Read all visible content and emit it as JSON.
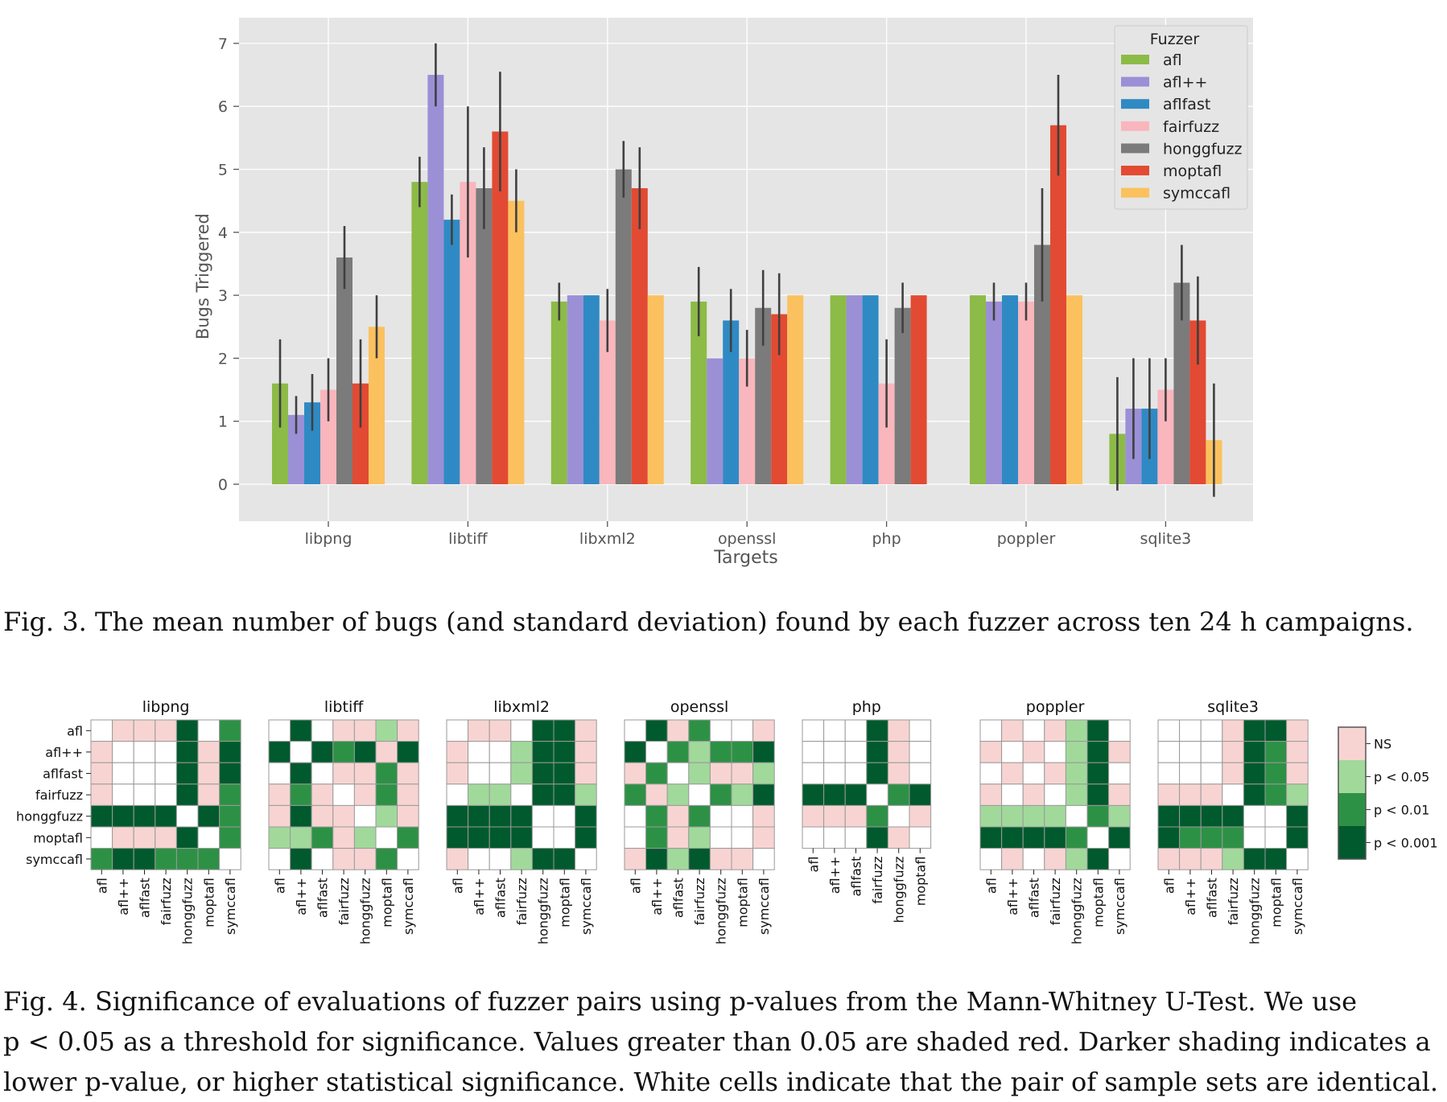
{
  "chart_data": [
    {
      "type": "bar",
      "xlabel": "Targets",
      "ylabel": "Bugs Triggered",
      "ylim": [
        -0.6,
        7.4
      ],
      "yticks": [
        0,
        1,
        2,
        3,
        4,
        5,
        6,
        7
      ],
      "grid": true,
      "legend_title": "Fuzzer",
      "legend_position": "top-right",
      "categories": [
        "libpng",
        "libtiff",
        "libxml2",
        "openssl",
        "php",
        "poppler",
        "sqlite3"
      ],
      "series": [
        {
          "name": "afl",
          "color": "#8cbb47",
          "values": [
            1.6,
            4.8,
            2.9,
            2.9,
            3.0,
            3.0,
            0.8
          ],
          "errors": [
            0.7,
            0.4,
            0.3,
            0.55,
            0.0,
            0.0,
            0.9
          ]
        },
        {
          "name": "afl++",
          "color": "#9b8fd6",
          "values": [
            1.1,
            6.5,
            3.0,
            2.0,
            3.0,
            2.9,
            1.2
          ],
          "errors": [
            0.3,
            0.5,
            0.0,
            0.0,
            0.0,
            0.3,
            0.8
          ]
        },
        {
          "name": "aflfast",
          "color": "#2f8ac4",
          "values": [
            1.3,
            4.2,
            3.0,
            2.6,
            3.0,
            3.0,
            1.2
          ],
          "errors": [
            0.45,
            0.4,
            0.0,
            0.5,
            0.0,
            0.0,
            0.8
          ]
        },
        {
          "name": "fairfuzz",
          "color": "#f9b6bc",
          "values": [
            1.5,
            4.8,
            2.6,
            2.0,
            1.6,
            2.9,
            1.5
          ],
          "errors": [
            0.5,
            1.2,
            0.5,
            0.45,
            0.7,
            0.3,
            0.5
          ]
        },
        {
          "name": "honggfuzz",
          "color": "#7b7b7b",
          "values": [
            3.6,
            4.7,
            5.0,
            2.8,
            2.8,
            3.8,
            3.2
          ],
          "errors": [
            0.5,
            0.65,
            0.45,
            0.6,
            0.4,
            0.9,
            0.6
          ]
        },
        {
          "name": "moptafl",
          "color": "#e24a33",
          "values": [
            1.6,
            5.6,
            4.7,
            2.7,
            3.0,
            5.7,
            2.6
          ],
          "errors": [
            0.7,
            0.95,
            0.65,
            0.65,
            0.0,
            0.8,
            0.7
          ]
        },
        {
          "name": "symccafl",
          "color": "#fbc15e",
          "values": [
            2.5,
            4.5,
            3.0,
            3.0,
            null,
            3.0,
            0.7
          ],
          "errors": [
            0.5,
            0.5,
            0.0,
            0.0,
            null,
            0.0,
            0.9
          ]
        }
      ]
    },
    {
      "type": "heatmap",
      "fuzzers": [
        "afl",
        "afl++",
        "aflfast",
        "fairfuzz",
        "honggfuzz",
        "moptafl",
        "symccafl"
      ],
      "legend": [
        {
          "code": 1,
          "label": "NS",
          "color": "#f7d4d2"
        },
        {
          "code": 2,
          "label": "p < 0.05",
          "color": "#a1d99b"
        },
        {
          "code": 3,
          "label": "p < 0.01",
          "color": "#2d9145"
        },
        {
          "code": 4,
          "label": "p < 0.001",
          "color": "#005a2d"
        }
      ],
      "code_0": "identical (white)",
      "panels": [
        {
          "title": "libpng",
          "fuzzers": [
            "afl",
            "afl++",
            "aflfast",
            "fairfuzz",
            "honggfuzz",
            "moptafl",
            "symccafl"
          ],
          "matrix": [
            [
              0,
              1,
              1,
              1,
              4,
              0,
              3
            ],
            [
              1,
              0,
              0,
              0,
              4,
              1,
              4
            ],
            [
              1,
              0,
              0,
              0,
              4,
              1,
              4
            ],
            [
              1,
              0,
              0,
              0,
              4,
              1,
              3
            ],
            [
              4,
              4,
              4,
              4,
              0,
              4,
              3
            ],
            [
              0,
              1,
              1,
              1,
              4,
              0,
              3
            ],
            [
              3,
              4,
              4,
              3,
              3,
              3,
              0
            ]
          ]
        },
        {
          "title": "libtiff",
          "fuzzers": [
            "afl",
            "afl++",
            "aflfast",
            "fairfuzz",
            "honggfuzz",
            "moptafl",
            "symccafl"
          ],
          "matrix": [
            [
              0,
              4,
              0,
              1,
              1,
              2,
              1
            ],
            [
              4,
              0,
              4,
              3,
              4,
              1,
              4
            ],
            [
              0,
              4,
              0,
              1,
              1,
              3,
              1
            ],
            [
              1,
              3,
              1,
              0,
              1,
              3,
              1
            ],
            [
              1,
              4,
              1,
              1,
              0,
              2,
              1
            ],
            [
              2,
              2,
              3,
              1,
              2,
              0,
              3
            ],
            [
              0,
              4,
              0,
              1,
              1,
              3,
              0
            ]
          ]
        },
        {
          "title": "libxml2",
          "fuzzers": [
            "afl",
            "afl++",
            "aflfast",
            "fairfuzz",
            "honggfuzz",
            "moptafl",
            "symccafl"
          ],
          "matrix": [
            [
              0,
              1,
              1,
              0,
              4,
              4,
              1
            ],
            [
              1,
              0,
              0,
              2,
              4,
              4,
              1
            ],
            [
              1,
              0,
              0,
              2,
              4,
              4,
              1
            ],
            [
              0,
              2,
              2,
              0,
              4,
              4,
              2
            ],
            [
              4,
              4,
              4,
              4,
              0,
              0,
              4
            ],
            [
              4,
              4,
              4,
              4,
              0,
              0,
              4
            ],
            [
              1,
              0,
              0,
              2,
              4,
              4,
              0
            ]
          ]
        },
        {
          "title": "openssl",
          "fuzzers": [
            "afl",
            "afl++",
            "aflfast",
            "fairfuzz",
            "honggfuzz",
            "moptafl",
            "symccafl"
          ],
          "matrix": [
            [
              0,
              4,
              1,
              3,
              0,
              0,
              1
            ],
            [
              4,
              0,
              3,
              2,
              3,
              3,
              4
            ],
            [
              1,
              3,
              0,
              2,
              1,
              1,
              2
            ],
            [
              3,
              1,
              2,
              0,
              3,
              2,
              4
            ],
            [
              0,
              3,
              1,
              3,
              0,
              0,
              1
            ],
            [
              0,
              3,
              1,
              2,
              0,
              0,
              1
            ],
            [
              1,
              4,
              2,
              4,
              1,
              1,
              0
            ]
          ]
        },
        {
          "title": "php",
          "fuzzers": [
            "afl",
            "afl++",
            "aflfast",
            "fairfuzz",
            "honggfuzz",
            "moptafl"
          ],
          "matrix": [
            [
              0,
              0,
              0,
              4,
              1,
              0
            ],
            [
              0,
              0,
              0,
              4,
              1,
              0
            ],
            [
              0,
              0,
              0,
              4,
              1,
              0
            ],
            [
              4,
              4,
              4,
              0,
              3,
              4
            ],
            [
              1,
              1,
              1,
              3,
              0,
              1
            ],
            [
              0,
              0,
              0,
              4,
              1,
              0
            ]
          ]
        },
        {
          "title": "poppler",
          "fuzzers": [
            "afl",
            "afl++",
            "aflfast",
            "fairfuzz",
            "honggfuzz",
            "moptafl",
            "symccafl"
          ],
          "matrix": [
            [
              0,
              1,
              0,
              1,
              2,
              4,
              0
            ],
            [
              1,
              0,
              1,
              0,
              2,
              4,
              1
            ],
            [
              0,
              1,
              0,
              1,
              2,
              4,
              0
            ],
            [
              1,
              0,
              1,
              0,
              2,
              4,
              1
            ],
            [
              2,
              2,
              2,
              2,
              0,
              3,
              2
            ],
            [
              4,
              4,
              4,
              4,
              3,
              0,
              4
            ],
            [
              0,
              1,
              0,
              1,
              2,
              4,
              0
            ]
          ]
        },
        {
          "title": "sqlite3",
          "fuzzers": [
            "afl",
            "afl++",
            "aflfast",
            "fairfuzz",
            "honggfuzz",
            "moptafl",
            "symccafl"
          ],
          "matrix": [
            [
              0,
              0,
              0,
              1,
              4,
              4,
              1
            ],
            [
              0,
              0,
              0,
              1,
              4,
              3,
              1
            ],
            [
              0,
              0,
              0,
              1,
              4,
              3,
              1
            ],
            [
              1,
              1,
              1,
              0,
              4,
              3,
              2
            ],
            [
              4,
              4,
              4,
              4,
              0,
              0,
              4
            ],
            [
              4,
              3,
              3,
              3,
              0,
              0,
              4
            ],
            [
              1,
              1,
              1,
              2,
              4,
              4,
              0
            ]
          ]
        }
      ]
    }
  ],
  "captions": {
    "fig3": "Fig. 3.  The mean number of bugs (and standard deviation) found by each fuzzer across ten 24 h campaigns.",
    "fig4_lines": [
      "Fig. 4.  Significance of evaluations of fuzzer pairs using p-values from the Mann-Whitney U-Test. We use",
      "p < 0.05 as a threshold for significance. Values greater than 0.05 are shaded red. Darker shading indicates a",
      "lower p-value, or higher statistical significance. White cells indicate that the pair of sample sets are identical."
    ]
  }
}
